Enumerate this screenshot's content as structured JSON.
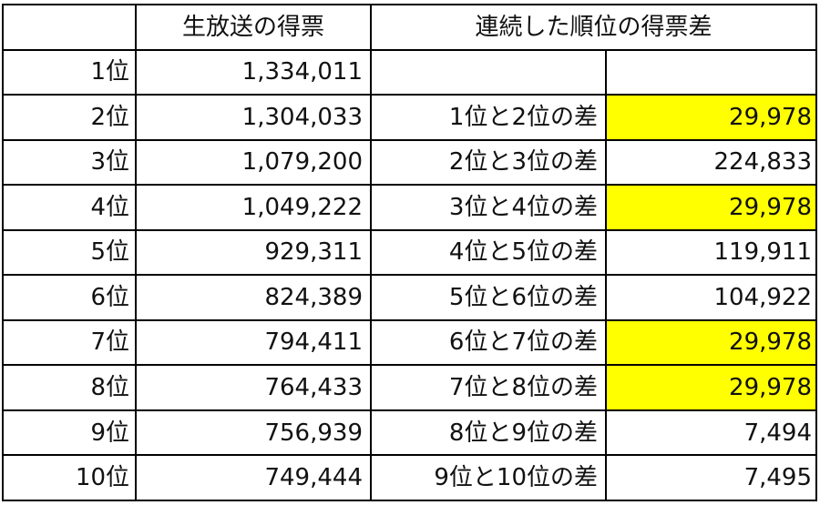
{
  "headers": {
    "corner": "",
    "votes": "生放送の得票",
    "gap": "連続した順位の得票差"
  },
  "rows": [
    {
      "rank": "1位",
      "votes": "1,334,011",
      "pair": "",
      "diff": "",
      "highlight": false
    },
    {
      "rank": "2位",
      "votes": "1,304,033",
      "pair": "1位と2位の差",
      "diff": "29,978",
      "highlight": true
    },
    {
      "rank": "3位",
      "votes": "1,079,200",
      "pair": "2位と3位の差",
      "diff": "224,833",
      "highlight": false
    },
    {
      "rank": "4位",
      "votes": "1,049,222",
      "pair": "3位と4位の差",
      "diff": "29,978",
      "highlight": true
    },
    {
      "rank": "5位",
      "votes": "929,311",
      "pair": "4位と5位の差",
      "diff": "119,911",
      "highlight": false
    },
    {
      "rank": "6位",
      "votes": "824,389",
      "pair": "5位と6位の差",
      "diff": "104,922",
      "highlight": false
    },
    {
      "rank": "7位",
      "votes": "794,411",
      "pair": "6位と7位の差",
      "diff": "29,978",
      "highlight": true
    },
    {
      "rank": "8位",
      "votes": "764,433",
      "pair": "7位と8位の差",
      "diff": "29,978",
      "highlight": true
    },
    {
      "rank": "9位",
      "votes": "756,939",
      "pair": "8位と9位の差",
      "diff": "7,494",
      "highlight": false
    },
    {
      "rank": "10位",
      "votes": "749,444",
      "pair": "9位と10位の差",
      "diff": "7,495",
      "highlight": false
    }
  ],
  "colors": {
    "highlight": "#ffff00",
    "border": "#000000",
    "text": "#111111"
  }
}
